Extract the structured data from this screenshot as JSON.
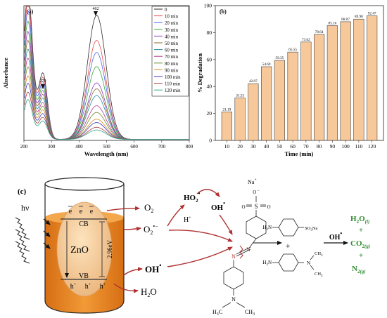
{
  "colors": {
    "bar_fill": "#f7c89a",
    "bar_stroke": "#444444",
    "beaker_orange": "#ee8c22",
    "beaker_dark": "#d97016",
    "particle": "#f6c98e",
    "arrow_red": "#b03030",
    "product_green": "#2e8b2e"
  },
  "chart_data": [
    {
      "type": "line",
      "panel_label": "(a)",
      "xlabel": "Wavelength (nm)",
      "ylabel": "Absorbance",
      "xlim": [
        200,
        800
      ],
      "x_ticks": [
        "200",
        "300",
        "400",
        "500",
        "600",
        "700",
        "800"
      ],
      "y_ticks": [],
      "grid": false,
      "legend_position": "top-right",
      "annotations": [
        "462",
        "270"
      ],
      "series": [
        {
          "name": "0",
          "color": "#2b2b2b",
          "peak464": 1.84,
          "peak270": 0.9,
          "band": 1.0
        },
        {
          "name": "10 min",
          "color": "#e84a4a",
          "peak464": 1.47,
          "peak270": 0.84,
          "band": 0.93
        },
        {
          "name": "20 min",
          "color": "#4a64e8",
          "peak464": 1.29,
          "peak270": 0.78,
          "band": 0.87
        },
        {
          "name": "30 min",
          "color": "#3ca83c",
          "peak464": 1.08,
          "peak270": 0.72,
          "band": 0.8
        },
        {
          "name": "40 min",
          "color": "#8a3ab8",
          "peak464": 0.84,
          "peak270": 0.66,
          "band": 0.73
        },
        {
          "name": "50 min",
          "color": "#8a6a2a",
          "peak464": 0.75,
          "peak270": 0.61,
          "band": 0.67
        },
        {
          "name": "60 min",
          "color": "#2a8aa8",
          "peak464": 0.65,
          "peak270": 0.56,
          "band": 0.61
        },
        {
          "name": "70 min",
          "color": "#b83a8a",
          "peak464": 0.5,
          "peak270": 0.5,
          "band": 0.55
        },
        {
          "name": "80 min",
          "color": "#6a8a2a",
          "peak464": 0.4,
          "peak270": 0.45,
          "band": 0.49
        },
        {
          "name": "90 min",
          "color": "#d88a2a",
          "peak464": 0.3,
          "peak270": 0.4,
          "band": 0.43
        },
        {
          "name": "100 min",
          "color": "#3a3ab8",
          "peak464": 0.25,
          "peak270": 0.35,
          "band": 0.38
        },
        {
          "name": "110 min",
          "color": "#a83a3a",
          "peak464": 0.18,
          "peak270": 0.3,
          "band": 0.32
        },
        {
          "name": "120 min",
          "color": "#2aa88a",
          "peak464": 0.14,
          "peak270": 0.25,
          "band": 0.27
        }
      ]
    },
    {
      "type": "bar",
      "panel_label": "(b)",
      "xlabel": "Time (min)",
      "ylabel": "% Degradation",
      "ylim": [
        0,
        100
      ],
      "y_ticks": [
        "0",
        "20",
        "40",
        "60",
        "80",
        "100"
      ],
      "categories": [
        "10",
        "20",
        "30",
        "40",
        "50",
        "60",
        "70",
        "80",
        "90",
        "100",
        "110",
        "120"
      ],
      "values": [
        21.19,
        31.53,
        42.07,
        54.69,
        59.35,
        65.55,
        73.02,
        78.64,
        85.16,
        88.07,
        89.98,
        92.47
      ],
      "value_labels": [
        "21.19",
        "31.53",
        "42.07",
        "54.69",
        "59.35",
        "65.55",
        "73.02",
        "78.64",
        "85.16",
        "88.07",
        "89.98",
        "92.47"
      ]
    }
  ],
  "scheme": {
    "panel_label": "(c)",
    "light": "hν",
    "cb": "CB",
    "vb": "VB",
    "catalyst": "ZnO",
    "bandgap": "2.96eV",
    "electron": "e",
    "hole": "h",
    "plus": "+",
    "o2": "O",
    "o2_sub": "2",
    "superoxide": "O",
    "superoxide_sub": "2",
    "superoxide_sup": "•−",
    "hplus": "H",
    "ho2": "HO",
    "ho2_sub": "2",
    "oh_radical": "OH",
    "water": "H",
    "water_sub": "2",
    "water_tail": "O",
    "dot": "•",
    "na": "Na",
    "sulfonyl_s": "S",
    "sulfonyl_o": "O",
    "azo_n": "N",
    "amine_h2n": "H",
    "amine_h2n_tail": "N",
    "so3na": "SO",
    "so3na_tail": "Na",
    "nme2_n": "N",
    "ch3": "CH",
    "ch3_sub": "3",
    "h3c": "H",
    "h3c_mid": "C",
    "plus_sign": "+",
    "product_h2o": "H",
    "product_h2o_tail": "O",
    "product_phase_l": "(l)",
    "product_co2": "CO",
    "product_phase_g": "(g)",
    "product_n2": "N",
    "sub_2": "2",
    "sub_3": "3"
  }
}
